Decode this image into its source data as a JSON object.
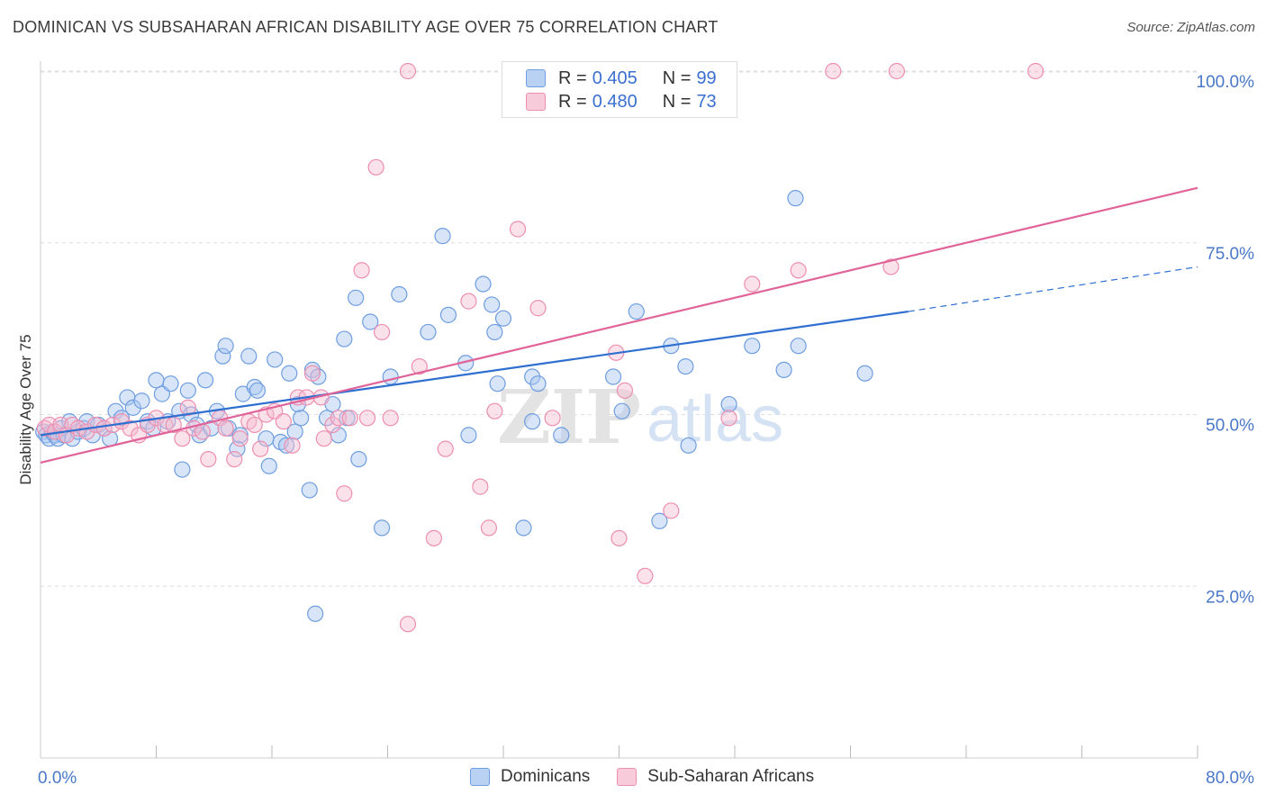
{
  "title": "DOMINICAN VS SUBSAHARAN AFRICAN DISABILITY AGE OVER 75 CORRELATION CHART",
  "source": "Source: ZipAtlas.com",
  "watermark": "ZIPatlas",
  "legend_top": {
    "rows": [
      {
        "r_label": "R =",
        "r_value": "0.405",
        "n_label": "N =",
        "n_value": "99"
      },
      {
        "r_label": "R =",
        "r_value": "0.480",
        "n_label": "N =",
        "n_value": "73"
      }
    ]
  },
  "legend_bottom": {
    "items": [
      "Dominicans",
      "Sub-Saharan Africans"
    ]
  },
  "colors": {
    "blue_fill": "#a9c6f0",
    "blue_stroke": "#6f9ee0",
    "blue_line": "#2f6fd0",
    "pink_fill": "#f6bdd0",
    "pink_stroke": "#ec8fb0",
    "pink_line": "#e0649a",
    "grid": "#dddddd",
    "tick_text": "#4a78c8"
  },
  "chart_data": {
    "type": "scatter",
    "title": "DOMINICAN VS SUBSAHARAN AFRICAN DISABILITY AGE OVER 75 CORRELATION CHART",
    "xlabel": "",
    "ylabel": "Disability Age Over 75",
    "xlim": [
      0,
      80
    ],
    "ylim": [
      0,
      102
    ],
    "x_tick_labels": [
      {
        "value": 0,
        "label": "0.0%"
      },
      {
        "value": 80,
        "label": "80.0%"
      }
    ],
    "y_tick_labels": [
      {
        "value": 25,
        "label": "25.0%"
      },
      {
        "value": 50,
        "label": "50.0%"
      },
      {
        "value": 75,
        "label": "75.0%"
      },
      {
        "value": 100,
        "label": "100.0%"
      }
    ],
    "x_minor_ticks": [
      8,
      16,
      24,
      32,
      40,
      48,
      56,
      64,
      72,
      80
    ],
    "grid": true,
    "legend_position": "top-center",
    "series": [
      {
        "name": "Dominicans",
        "color": "#6f9ee0",
        "r": 0.405,
        "n": 99,
        "trend": {
          "x0": 0,
          "y0": 47.0,
          "x1": 60,
          "y1": 65.0,
          "dash_x1": 80,
          "dash_y1": 71.5
        },
        "points": [
          [
            0.2,
            47.5
          ],
          [
            0.4,
            47.0
          ],
          [
            0.6,
            46.5
          ],
          [
            0.8,
            47.5
          ],
          [
            1.0,
            47.0
          ],
          [
            1.2,
            46.5
          ],
          [
            1.4,
            48.0
          ],
          [
            1.6,
            47.0
          ],
          [
            2.0,
            49.0
          ],
          [
            2.2,
            46.5
          ],
          [
            2.6,
            47.5
          ],
          [
            3.0,
            48.0
          ],
          [
            3.2,
            49.0
          ],
          [
            3.6,
            47.0
          ],
          [
            4.0,
            48.5
          ],
          [
            4.4,
            48.0
          ],
          [
            4.8,
            46.5
          ],
          [
            5.2,
            50.5
          ],
          [
            5.6,
            49.5
          ],
          [
            6.0,
            52.5
          ],
          [
            6.4,
            51.0
          ],
          [
            7.0,
            52.0
          ],
          [
            7.4,
            49.0
          ],
          [
            7.8,
            48.0
          ],
          [
            8.0,
            55.0
          ],
          [
            8.4,
            53.0
          ],
          [
            8.8,
            49.0
          ],
          [
            9.0,
            54.5
          ],
          [
            9.6,
            50.5
          ],
          [
            9.8,
            42.0
          ],
          [
            10.2,
            53.5
          ],
          [
            10.4,
            50.0
          ],
          [
            10.8,
            48.5
          ],
          [
            11.0,
            47.0
          ],
          [
            11.4,
            55.0
          ],
          [
            11.8,
            48.0
          ],
          [
            12.2,
            50.5
          ],
          [
            12.6,
            58.5
          ],
          [
            12.8,
            60.0
          ],
          [
            13.0,
            48.0
          ],
          [
            13.6,
            45.0
          ],
          [
            13.8,
            47.0
          ],
          [
            14.0,
            53.0
          ],
          [
            14.4,
            58.5
          ],
          [
            14.8,
            54.0
          ],
          [
            15.0,
            53.5
          ],
          [
            15.6,
            46.5
          ],
          [
            15.8,
            42.5
          ],
          [
            16.2,
            58.0
          ],
          [
            16.6,
            46.0
          ],
          [
            17.0,
            45.5
          ],
          [
            17.2,
            56.0
          ],
          [
            17.6,
            47.5
          ],
          [
            17.8,
            51.5
          ],
          [
            18.0,
            49.5
          ],
          [
            18.6,
            39.0
          ],
          [
            18.8,
            56.5
          ],
          [
            19.2,
            55.5
          ],
          [
            19.8,
            49.5
          ],
          [
            20.2,
            51.5
          ],
          [
            20.6,
            47.0
          ],
          [
            21.0,
            61.0
          ],
          [
            21.2,
            49.5
          ],
          [
            21.8,
            67.0
          ],
          [
            22.0,
            43.5
          ],
          [
            22.8,
            63.5
          ],
          [
            23.6,
            33.5
          ],
          [
            24.2,
            55.5
          ],
          [
            24.8,
            67.5
          ],
          [
            26.8,
            62.0
          ],
          [
            27.8,
            76.0
          ],
          [
            28.2,
            64.5
          ],
          [
            29.4,
            57.5
          ],
          [
            29.6,
            47.0
          ],
          [
            30.6,
            69.0
          ],
          [
            31.2,
            66.0
          ],
          [
            31.4,
            62.0
          ],
          [
            31.6,
            54.5
          ],
          [
            32.0,
            64.0
          ],
          [
            33.4,
            33.5
          ],
          [
            34.0,
            55.5
          ],
          [
            34.0,
            49.0
          ],
          [
            34.4,
            54.5
          ],
          [
            36.0,
            47.0
          ],
          [
            36.2,
            100.0
          ],
          [
            39.6,
            55.5
          ],
          [
            40.2,
            50.5
          ],
          [
            41.2,
            65.0
          ],
          [
            42.8,
            34.5
          ],
          [
            43.6,
            60.0
          ],
          [
            44.6,
            57.0
          ],
          [
            44.8,
            45.5
          ],
          [
            47.6,
            51.5
          ],
          [
            49.2,
            60.0
          ],
          [
            51.4,
            56.5
          ],
          [
            52.2,
            81.5
          ],
          [
            52.4,
            60.0
          ],
          [
            57.0,
            56.0
          ],
          [
            19.0,
            21.0
          ]
        ]
      },
      {
        "name": "Sub-Saharan Africans",
        "color": "#ec8fb0",
        "r": 0.48,
        "n": 73,
        "trend": {
          "x0": 0,
          "y0": 43.0,
          "x1": 80,
          "y1": 83.0
        },
        "points": [
          [
            0.3,
            48.0
          ],
          [
            0.6,
            48.5
          ],
          [
            1.0,
            47.5
          ],
          [
            1.4,
            48.5
          ],
          [
            1.8,
            47.0
          ],
          [
            2.2,
            48.5
          ],
          [
            2.6,
            48.0
          ],
          [
            3.2,
            47.5
          ],
          [
            3.8,
            48.5
          ],
          [
            4.4,
            48.0
          ],
          [
            5.0,
            48.5
          ],
          [
            5.6,
            49.0
          ],
          [
            6.2,
            48.0
          ],
          [
            6.8,
            47.0
          ],
          [
            7.4,
            48.5
          ],
          [
            8.0,
            49.5
          ],
          [
            8.6,
            48.5
          ],
          [
            9.2,
            48.5
          ],
          [
            9.8,
            46.5
          ],
          [
            10.2,
            51.0
          ],
          [
            10.6,
            48.0
          ],
          [
            11.2,
            47.5
          ],
          [
            11.6,
            43.5
          ],
          [
            12.4,
            49.5
          ],
          [
            12.8,
            48.0
          ],
          [
            13.4,
            43.5
          ],
          [
            13.8,
            46.5
          ],
          [
            14.4,
            49.0
          ],
          [
            14.8,
            48.5
          ],
          [
            15.2,
            45.0
          ],
          [
            15.6,
            50.0
          ],
          [
            16.2,
            50.5
          ],
          [
            16.8,
            49.0
          ],
          [
            17.4,
            45.5
          ],
          [
            17.8,
            52.5
          ],
          [
            18.4,
            52.5
          ],
          [
            18.8,
            56.0
          ],
          [
            19.4,
            52.5
          ],
          [
            19.6,
            46.5
          ],
          [
            20.2,
            48.5
          ],
          [
            20.6,
            49.5
          ],
          [
            21.0,
            38.5
          ],
          [
            21.4,
            49.5
          ],
          [
            22.2,
            71.0
          ],
          [
            22.6,
            49.5
          ],
          [
            23.2,
            86.0
          ],
          [
            23.6,
            62.0
          ],
          [
            24.2,
            49.5
          ],
          [
            25.4,
            19.5
          ],
          [
            26.2,
            57.0
          ],
          [
            27.2,
            32.0
          ],
          [
            28.0,
            45.0
          ],
          [
            29.6,
            66.5
          ],
          [
            30.4,
            39.5
          ],
          [
            31.0,
            33.5
          ],
          [
            31.4,
            50.5
          ],
          [
            33.0,
            77.0
          ],
          [
            34.4,
            65.5
          ],
          [
            35.4,
            49.5
          ],
          [
            36.4,
            100.0
          ],
          [
            40.0,
            32.0
          ],
          [
            40.4,
            53.5
          ],
          [
            41.8,
            26.5
          ],
          [
            43.6,
            36.0
          ],
          [
            47.6,
            49.5
          ],
          [
            49.2,
            69.0
          ],
          [
            52.4,
            71.0
          ],
          [
            54.8,
            100.0
          ],
          [
            58.8,
            71.5
          ],
          [
            59.2,
            100.0
          ],
          [
            68.8,
            100.0
          ],
          [
            25.4,
            100.0
          ],
          [
            39.8,
            59.0
          ]
        ]
      }
    ]
  }
}
